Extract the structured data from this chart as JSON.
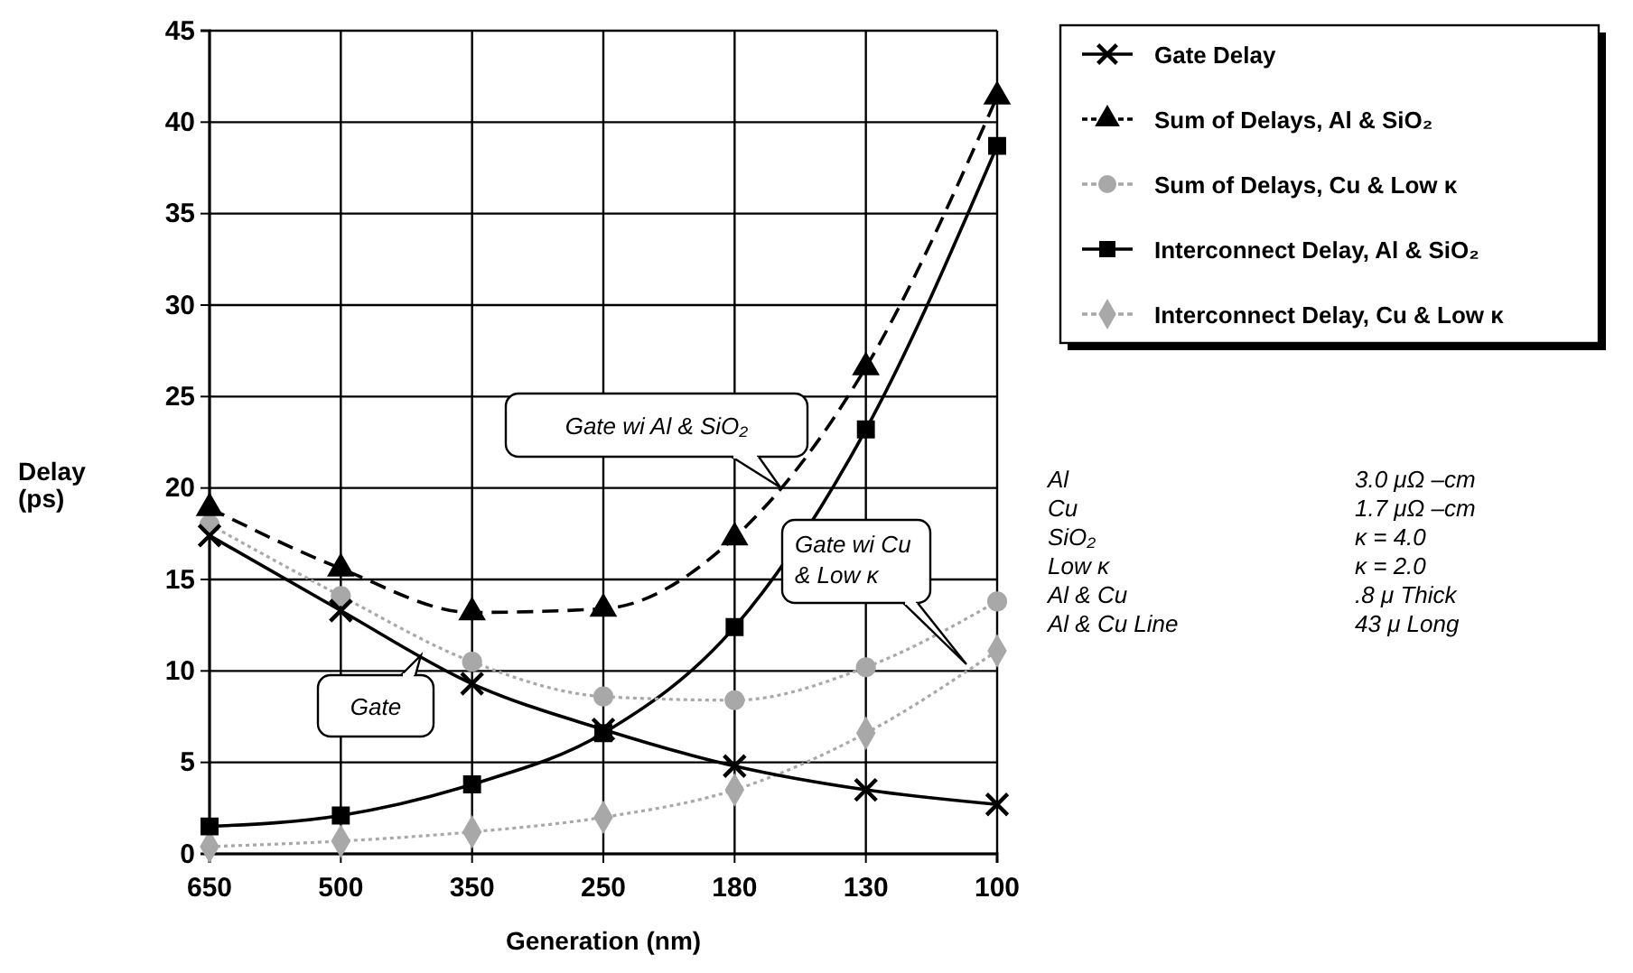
{
  "chart_data": {
    "type": "line",
    "xlabel": "Generation (nm)",
    "ylabel": "Delay\n(ps)",
    "categories": [
      "650",
      "500",
      "350",
      "250",
      "180",
      "130",
      "100"
    ],
    "ylim": [
      0,
      45
    ],
    "yticks": [
      0,
      5,
      10,
      15,
      20,
      25,
      30,
      35,
      40,
      45
    ],
    "grid": true,
    "legend": "top right",
    "series": [
      {
        "name": "Gate Delay",
        "color": "#000000",
        "marker": "cross",
        "line_style": "solid",
        "values": [
          17.4,
          13.3,
          9.3,
          6.8,
          4.8,
          3.5,
          2.7
        ]
      },
      {
        "name": "Sum of Delays, Al & SiO₂",
        "color": "#000000",
        "marker": "triangle",
        "line_style": "dashed",
        "values": [
          18.9,
          15.6,
          13.2,
          13.4,
          17.3,
          26.6,
          41.4
        ]
      },
      {
        "name": "Sum of Delays, Cu & Low κ",
        "color": "#a8a8a8",
        "marker": "circle",
        "line_style": "dotted",
        "values": [
          18.0,
          14.1,
          10.5,
          8.6,
          8.4,
          10.2,
          13.8
        ]
      },
      {
        "name": "Interconnect Delay, Al & SiO₂",
        "color": "#000000",
        "marker": "square",
        "line_style": "solid",
        "values": [
          1.5,
          2.1,
          3.8,
          6.6,
          12.4,
          23.2,
          38.7
        ]
      },
      {
        "name": "Interconnect Delay, Cu & Low κ",
        "color": "#a8a8a8",
        "marker": "diamond",
        "line_style": "dotted",
        "values": [
          0.4,
          0.7,
          1.2,
          2.0,
          3.5,
          6.6,
          11.1
        ]
      }
    ],
    "annotations": [
      "Gate wi Al & SiO₂",
      "Gate wi Cu\n& Low κ",
      "Gate",
      "Al",
      "3.0 μΩ –cm",
      "Cu",
      "1.7 μΩ –cm",
      "SiO₂",
      "κ = 4.0",
      "Low κ",
      "κ = 2.0",
      "Al & Cu",
      ".8 μ Thick",
      "Al & Cu Line",
      "43 μ Long"
    ]
  }
}
